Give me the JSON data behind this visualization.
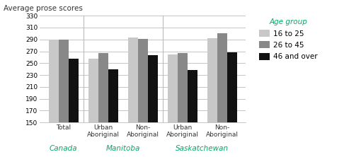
{
  "title": "Average prose scores",
  "groups": [
    "Total",
    "Urban\nAboriginal",
    "Non-\nAboriginal",
    "Urban\nAboriginal",
    "Non-\nAboriginal"
  ],
  "region_labels": [
    "Canada",
    "Manitoba",
    "Saskatchewan"
  ],
  "region_label_color": "#00aa66",
  "region_centers": [
    0,
    1.5,
    3.5
  ],
  "series": {
    "16 to 25": {
      "color": "#c8c8c8",
      "values": [
        290,
        257,
        293,
        265,
        292
      ]
    },
    "26 to 45": {
      "color": "#888888",
      "values": [
        290,
        267,
        291,
        267,
        300
      ]
    },
    "46 and over": {
      "color": "#111111",
      "values": [
        257,
        240,
        263,
        238,
        268
      ]
    }
  },
  "ylim": [
    150,
    330
  ],
  "yticks": [
    150,
    170,
    190,
    210,
    230,
    250,
    270,
    290,
    310,
    330
  ],
  "bar_width": 0.25,
  "legend_title": "Age group",
  "legend_title_color": "#00aa66",
  "background_color": "#ffffff",
  "grid_color": "#bbbbbb",
  "title_fontsize": 7.5,
  "tick_fontsize": 6.5,
  "region_fontsize": 7.5,
  "legend_fontsize": 7.5,
  "axis_label_color": "#333333"
}
